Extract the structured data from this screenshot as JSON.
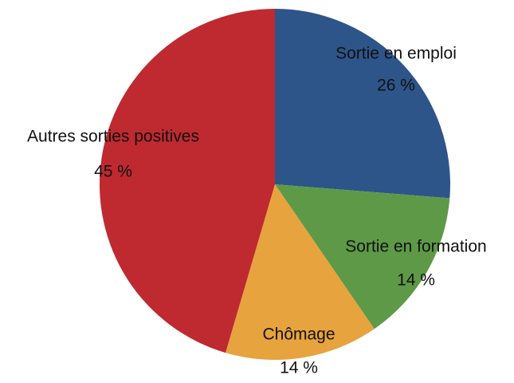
{
  "chart_data": {
    "type": "pie",
    "categories": [
      "Sortie en emploi",
      "Sortie en formation",
      "Chômage",
      "Autres sorties positives"
    ],
    "values": [
      26,
      14,
      14,
      45
    ],
    "value_labels": [
      "26 %",
      "14 %",
      "14 %",
      "45 %"
    ],
    "colors": [
      "#2e558a",
      "#5e9947",
      "#e7a33d",
      "#be2a30"
    ]
  }
}
